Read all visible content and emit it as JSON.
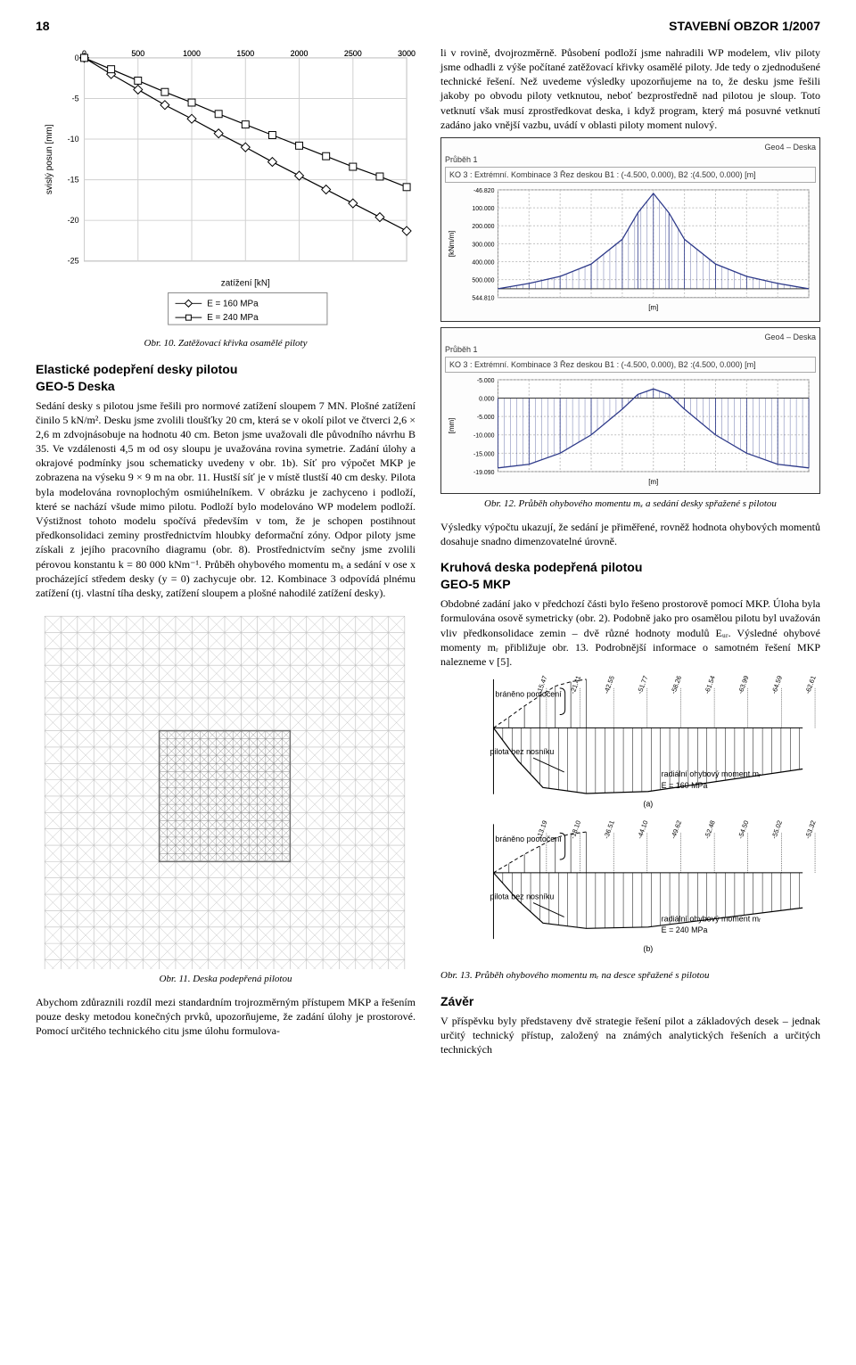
{
  "header": {
    "page_number": "18",
    "journal": "STAVEBNÍ OBZOR 1/2007"
  },
  "chart1": {
    "type": "line",
    "x": [
      0,
      250,
      500,
      750,
      1000,
      1250,
      1500,
      1750,
      2000,
      2250,
      2500,
      2750,
      3000
    ],
    "series": [
      {
        "name": "E = 160 MPa",
        "marker": "diamond",
        "color": "#000000",
        "y": [
          0,
          -2.0,
          -3.9,
          -5.8,
          -7.5,
          -9.3,
          -11.0,
          -12.8,
          -14.5,
          -16.2,
          -17.9,
          -19.6,
          -21.3
        ]
      },
      {
        "name": "E = 240 MPa",
        "marker": "square",
        "color": "#000000",
        "y": [
          0,
          -1.4,
          -2.8,
          -4.2,
          -5.5,
          -6.9,
          -8.2,
          -9.5,
          -10.8,
          -12.1,
          -13.4,
          -14.6,
          -15.9
        ]
      }
    ],
    "xlim": [
      0,
      3000
    ],
    "xtick_step": 500,
    "ylim": [
      -25,
      0
    ],
    "ytick_step": 5,
    "ylabel": "svislý posun [mm]",
    "xlabel": "zatížení [kN]",
    "background_color": "#ffffff",
    "grid_color": "#d0d0d0",
    "plot_border_color": "#888888",
    "marker_size": 5,
    "line_width": 1.2,
    "legend_position": "below"
  },
  "fig10_caption": "Obr. 10. Zatěžovací křivka osamělé piloty",
  "sec1_title": "Elastické podepření desky pilotou\nGEO-5 Deska",
  "sec1_body": "Sedání desky s pilotou jsme řešili pro normové zatížení sloupem 7 MN. Plošné zatížení činilo 5 kN/m². Desku jsme zvolili tloušťky 20 cm, která se v okolí pilot ve čtverci 2,6 × 2,6 m zdvojnásobuje na hodnotu 40 cm. Beton jsme uvažovali dle původního návrhu B 35. Ve vzdálenosti 4,5 m od osy sloupu je uvažována rovina symetrie. Zadání úlohy a okrajové podmínky jsou schematicky uvedeny v obr. 1b). Síť pro výpočet MKP je zobrazena na výseku 9 × 9 m na obr. 11. Hustší síť je v místě tlustší 40 cm desky. Pilota byla modelována rovnoplochým osmiúhelníkem. V obrázku je zachyceno i podloží, které se nachází všude mimo pilotu. Podloží bylo modelováno WP modelem podloží. Výstižnost tohoto modelu spočívá především v tom, že je schopen postihnout předkonsolidaci zeminy prostřednictvím hloubky deformační zóny. Odpor piloty jsme získali z jejího pracovního diagramu (obr. 8). Prostřednictvím sečny jsme zvolili pérovou konstantu k = 80 000 kNm⁻¹. Průběh ohybového momentu mₓ a sedání v ose x procházející středem desky (y = 0) zachycuje obr. 12. Kombinace 3 odpovídá plnému zatížení (tj. vlastní tíha desky, zatížení sloupem a plošné nahodilé zatížení desky).",
  "mesh": {
    "type": "fem-mesh",
    "outer": 22,
    "inner_from": 7,
    "inner_to": 15,
    "color": "#bdbdbd",
    "line_width": 0.6,
    "diag_color": "#bdbdbd"
  },
  "fig11_caption": "Obr. 11. Deska podepřená pilotou",
  "sec_bottom": "Abychom zdůraznili rozdíl mezi standardním trojrozměrným přístupem MKP a řešením pouze desky metodou konečných prvků, upozorňujeme, že zadání úlohy je prostorové. Pomocí určitého technického citu jsme úlohu formulova-",
  "right_intro": "li v rovině, dvojrozměrně. Působení podloží jsme nahradili WP modelem, vliv piloty jsme odhadli z výše počítané zatěžovací křivky osamělé piloty. Jde tedy o zjednodušené technické řešení. Než uvedeme výsledky upozorňujeme na to, že desku jsme řešili jakoby po obvodu piloty vetknutou, neboť bezprostředně nad pilotou je sloup. Toto vetknutí však musí zprostředkovat deska, i když program, který má posuvné vetknutí zadáno jako vnější vazbu, uvádí v oblasti piloty moment nulový.",
  "screenshot1": {
    "app_title": "Geo4 – Deska",
    "subtitle": "Průběh 1",
    "info_line": "KO 3 : Extrémní. Kombinace 3 Řez deskou B1 : (-4.500, 0.000), B2 :(4.500, 0.000) [m]",
    "ylabel": "[kNm/m]",
    "xlabel": "[m]",
    "ticks_left": [
      "-46.820",
      "100.000",
      "200.000",
      "300.000",
      "400.000",
      "500.000",
      "544.810"
    ],
    "x": [
      -4.5,
      -3.6,
      -2.7,
      -1.8,
      -0.9,
      -0.45,
      0,
      0.45,
      0.9,
      1.8,
      2.7,
      3.6,
      4.5
    ],
    "y": [
      0,
      30,
      70,
      140,
      280,
      430,
      540,
      430,
      280,
      140,
      70,
      30,
      0
    ],
    "ylim": [
      -50,
      560
    ],
    "line_color": "#2e3a8a",
    "hatch_color": "#2e3a8a",
    "grid_color": "#c0c0c0",
    "plot_border_color": "#888888"
  },
  "screenshot2": {
    "app_title": "Geo4 – Deska",
    "subtitle": "Průběh 1",
    "info_line": "KO 3 : Extrémní. Kombinace 3 Řez deskou B1 : (-4.500, 0.000), B2 :(4.500, 0.000) [m]",
    "ylabel": "[mm]",
    "xlabel": "[m]",
    "ticks_left": [
      "-5.000",
      "0.000",
      "-5.000",
      "-10.000",
      "-15.000",
      "-19.090"
    ],
    "x": [
      -4.5,
      -3.6,
      -2.7,
      -1.8,
      -0.9,
      -0.45,
      0,
      0.45,
      0.9,
      1.8,
      2.7,
      3.6,
      4.5
    ],
    "y": [
      -19,
      -18,
      -15,
      -10,
      -3,
      1,
      2.5,
      1,
      -3,
      -10,
      -15,
      -18,
      -19
    ],
    "ylim": [
      -20,
      5
    ],
    "line_color": "#2e3a8a",
    "hatch_color": "#2e3a8a",
    "grid_color": "#c0c0c0",
    "plot_border_color": "#888888"
  },
  "fig12_caption": "Obr. 12. Průběh ohybového momentu mₓ a sedání desky spřažené s pilotou",
  "sec2_body": "Výsledky výpočtu ukazují, že sedání je přiměřené, rovněž hodnota ohybových momentů dosahuje snadno dimenzovatelné úrovně.",
  "sec3_title": "Kruhová deska podepřená pilotou\nGEO-5 MKP",
  "sec3_body": "Obdobné zadání jako v předchozí části bylo řešeno prostorově pomocí MKP. Úloha byla formulována osově symetricky (obr. 2). Podobně jako pro osamělou pilotu byl uvažován vliv předkonsolidace zemin – dvě různé hodnoty modulů Eᵤᵣ. Výsledné ohybové momenty mᵣ přibližuje obr. 13. Podrobnější informace o samotném řešení MKP nalezneme v [5].",
  "chart13": {
    "type": "moment-diagram-pair",
    "labels": {
      "left_top": "bráněno pootočení",
      "left_line": "pilota bez nosníku",
      "right": "radiální ohybový moment mᵣ",
      "e160": "E = 160 MPa",
      "e240": "E = 240 MPa",
      "a": "(a)",
      "b": "(b)"
    },
    "a_values_over": [
      "-15.47",
      "-21.41",
      "-42.55",
      "-51.77",
      "-58.26",
      "-61.54",
      "-63.99",
      "-64.59",
      "-62.61"
    ],
    "a_curve": {
      "x": [
        0,
        0.08,
        0.16,
        0.3,
        0.5,
        1.0
      ],
      "y": [
        0,
        50,
        90,
        99,
        96,
        62
      ]
    },
    "a_hatch": {
      "x": [
        0,
        0.05,
        0.1,
        0.15,
        0.2,
        0.25,
        0.3
      ],
      "y": [
        0,
        -22,
        -45,
        -66,
        -86,
        -95,
        -100
      ]
    },
    "b_values_over": [
      "-13.19",
      "-18.10",
      "-36.51",
      "-44.10",
      "-49.62",
      "-52.48",
      "-54.50",
      "-55.02",
      "-53.32"
    ],
    "b_curve": {
      "x": [
        0,
        0.08,
        0.16,
        0.3,
        0.5,
        1.0
      ],
      "y": [
        0,
        42,
        76,
        84,
        82,
        53
      ]
    },
    "b_hatch": {
      "x": [
        0,
        0.05,
        0.1,
        0.15,
        0.2,
        0.25,
        0.3
      ],
      "y": [
        0,
        -19,
        -38,
        -55,
        -72,
        -80,
        -84
      ]
    },
    "axis_color": "#000000",
    "curve_color": "#000000",
    "line_width": 1.0,
    "font_size": 9
  },
  "fig13_caption": "Obr. 13. Průběh ohybového momentu mᵣ na desce spřažené s pilotou",
  "sec4_title": "Závěr",
  "sec4_body": "V příspěvku byly představeny dvě strategie řešení pilot a základových desek – jednak určitý technický přístup, založený na známých analytických řešeních a určitých technických"
}
